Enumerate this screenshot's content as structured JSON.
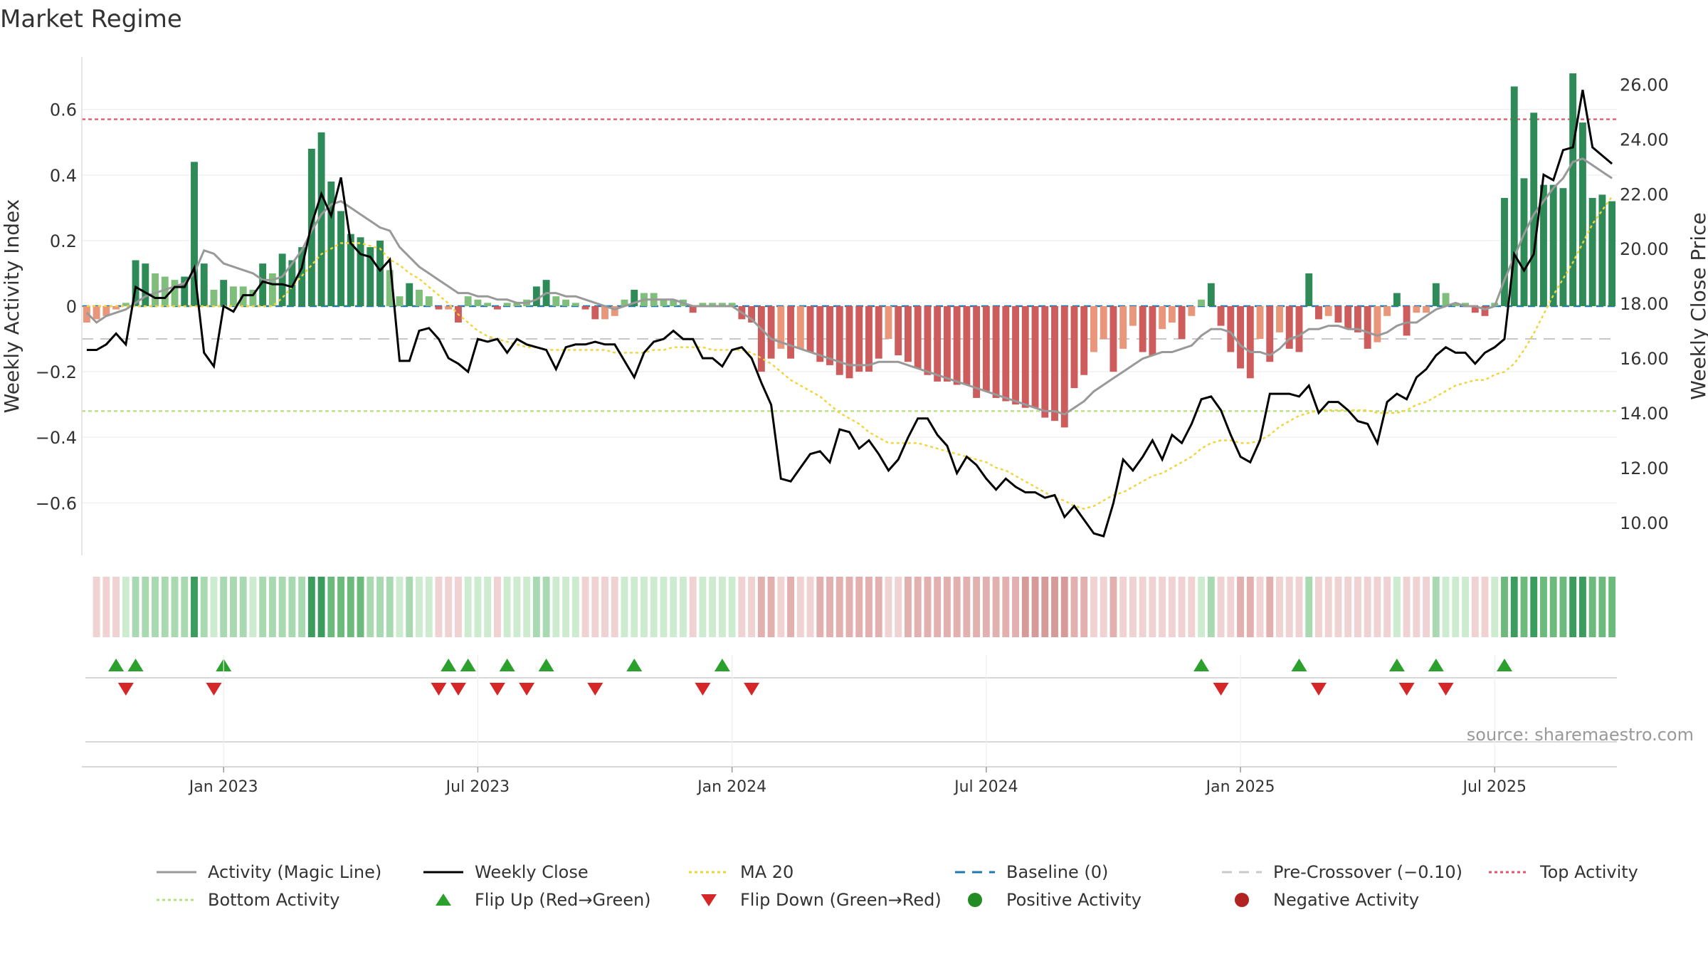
{
  "chart_data": {
    "type": "bar+line",
    "title": "Market Regime",
    "source": "source: sharemaestro.com",
    "left_axis": {
      "label": "Weekly Activity Index",
      "range": [
        -0.76,
        0.76
      ],
      "ticks": [
        -0.6,
        -0.4,
        -0.2,
        0,
        0.2,
        0.4,
        0.6
      ],
      "tick_labels": [
        "−0.6",
        "−0.4",
        "−0.2",
        "0",
        "0.2",
        "0.4",
        "0.6"
      ]
    },
    "right_axis": {
      "label": "Weekly Close Price",
      "range": [
        8.8,
        27.0
      ],
      "ticks": [
        10,
        12,
        14,
        16,
        18,
        20,
        22,
        24,
        26
      ],
      "tick_labels": [
        "10.00",
        "12.00",
        "14.00",
        "16.00",
        "18.00",
        "20.00",
        "22.00",
        "24.00",
        "26.00"
      ]
    },
    "x_axis": {
      "tick_labels": [
        "Jan 2023",
        "Jul 2023",
        "Jan 2024",
        "Jul 2024",
        "Jan 2025",
        "Jul 2025"
      ],
      "tick_weeks": [
        14,
        40,
        66,
        92,
        118,
        144
      ]
    },
    "reference_lines": {
      "top_activity": 0.57,
      "bottom_activity": -0.32,
      "pre_crossover": -0.1,
      "baseline": 0
    },
    "colors": {
      "pos_strong": "#2e8b57",
      "pos_weak": "#7fbf7b",
      "neg_strong": "#cd5c5c",
      "neg_weak": "#e9967a",
      "magic_line": "#999999",
      "close": "#000000",
      "ma20": "#f2d43a",
      "baseline": "#1f77b4",
      "top": "#e0556a",
      "bottom": "#b5de7e",
      "flip_up": "#2ca02c",
      "flip_down": "#d62728"
    },
    "series": {
      "activity": [
        -0.05,
        -0.04,
        -0.03,
        -0.01,
        0.01,
        0.14,
        0.13,
        0.1,
        0.09,
        0.08,
        0.09,
        0.44,
        0.13,
        0.05,
        0.08,
        0.06,
        0.06,
        0.05,
        0.13,
        0.1,
        0.16,
        0.14,
        0.18,
        0.48,
        0.53,
        0.38,
        0.29,
        0.22,
        0.21,
        0.18,
        0.2,
        0.11,
        0.03,
        0.07,
        0.05,
        0.03,
        -0.01,
        -0.01,
        -0.05,
        0.03,
        0.02,
        0.01,
        -0.01,
        0.01,
        0.01,
        0.02,
        0.06,
        0.08,
        0.03,
        0.02,
        0.01,
        -0.01,
        -0.04,
        -0.04,
        -0.03,
        0.02,
        0.05,
        0.04,
        0.04,
        0.02,
        0.02,
        0.02,
        -0.02,
        0.01,
        0.01,
        0.01,
        0.01,
        -0.04,
        -0.05,
        -0.2,
        -0.16,
        -0.13,
        -0.16,
        -0.13,
        -0.14,
        -0.17,
        -0.18,
        -0.21,
        -0.22,
        -0.2,
        -0.2,
        -0.16,
        -0.1,
        -0.15,
        -0.17,
        -0.19,
        -0.21,
        -0.23,
        -0.23,
        -0.24,
        -0.24,
        -0.28,
        -0.26,
        -0.28,
        -0.29,
        -0.3,
        -0.31,
        -0.31,
        -0.34,
        -0.35,
        -0.37,
        -0.25,
        -0.21,
        -0.14,
        -0.1,
        -0.2,
        -0.13,
        -0.06,
        -0.14,
        -0.15,
        -0.07,
        -0.05,
        -0.1,
        -0.03,
        0.02,
        0.07,
        -0.06,
        -0.14,
        -0.19,
        -0.22,
        -0.1,
        -0.17,
        -0.08,
        -0.13,
        -0.14,
        0.1,
        -0.04,
        -0.03,
        -0.05,
        -0.07,
        -0.08,
        -0.13,
        -0.11,
        -0.03,
        0.04,
        -0.09,
        -0.02,
        -0.02,
        0.07,
        0.04,
        0.01,
        0.01,
        -0.02,
        -0.03,
        0.01,
        0.33,
        0.67,
        0.39,
        0.59,
        0.37,
        0.37,
        0.36,
        0.71,
        0.56,
        0.33,
        0.34,
        0.32
      ],
      "magic_line": [
        -0.02,
        -0.05,
        -0.03,
        -0.02,
        -0.01,
        0.01,
        0.03,
        0.04,
        0.05,
        0.06,
        0.07,
        0.1,
        0.17,
        0.16,
        0.13,
        0.12,
        0.11,
        0.1,
        0.08,
        0.08,
        0.09,
        0.13,
        0.17,
        0.23,
        0.28,
        0.31,
        0.32,
        0.3,
        0.28,
        0.26,
        0.24,
        0.23,
        0.18,
        0.15,
        0.12,
        0.1,
        0.08,
        0.06,
        0.04,
        0.04,
        0.03,
        0.03,
        0.02,
        0.02,
        0.01,
        0.01,
        0.02,
        0.04,
        0.04,
        0.03,
        0.03,
        0.02,
        0.01,
        0,
        -0.01,
        0,
        0.01,
        0.02,
        0.02,
        0.02,
        0.02,
        0.01,
        0,
        0,
        0,
        0,
        0,
        -0.02,
        -0.04,
        -0.07,
        -0.1,
        -0.11,
        -0.12,
        -0.13,
        -0.14,
        -0.15,
        -0.16,
        -0.17,
        -0.18,
        -0.18,
        -0.18,
        -0.17,
        -0.17,
        -0.17,
        -0.18,
        -0.19,
        -0.2,
        -0.21,
        -0.22,
        -0.23,
        -0.24,
        -0.25,
        -0.26,
        -0.27,
        -0.28,
        -0.29,
        -0.3,
        -0.31,
        -0.32,
        -0.32,
        -0.33,
        -0.31,
        -0.29,
        -0.26,
        -0.24,
        -0.22,
        -0.2,
        -0.18,
        -0.16,
        -0.15,
        -0.14,
        -0.14,
        -0.13,
        -0.12,
        -0.09,
        -0.07,
        -0.07,
        -0.08,
        -0.12,
        -0.14,
        -0.14,
        -0.15,
        -0.13,
        -0.1,
        -0.09,
        -0.07,
        -0.07,
        -0.06,
        -0.06,
        -0.07,
        -0.07,
        -0.08,
        -0.09,
        -0.08,
        -0.06,
        -0.05,
        -0.05,
        -0.03,
        -0.01,
        0,
        0.01,
        0,
        0,
        -0.01,
        0,
        0.08,
        0.15,
        0.22,
        0.28,
        0.32,
        0.36,
        0.39,
        0.44,
        0.45,
        0.43,
        0.41,
        0.39
      ],
      "close": [
        16.3,
        16.3,
        16.5,
        16.9,
        16.5,
        18.6,
        18.4,
        18.2,
        18.2,
        18.6,
        18.6,
        19.3,
        16.2,
        15.7,
        17.9,
        17.7,
        18.3,
        18.3,
        18.8,
        18.7,
        18.7,
        18.6,
        19.3,
        20.9,
        22.0,
        21.2,
        22.6,
        20.2,
        19.8,
        19.7,
        19.2,
        19.6,
        15.9,
        15.9,
        17.0,
        17.1,
        16.7,
        16.0,
        15.8,
        15.5,
        16.7,
        16.6,
        16.7,
        16.2,
        16.7,
        16.5,
        16.4,
        16.3,
        15.6,
        16.4,
        16.5,
        16.5,
        16.6,
        16.5,
        16.5,
        15.9,
        15.3,
        16.2,
        16.6,
        16.7,
        17.0,
        16.7,
        16.7,
        16.0,
        16.0,
        15.7,
        16.3,
        16.4,
        16.0,
        15.1,
        14.3,
        11.6,
        11.5,
        12.0,
        12.5,
        12.6,
        12.2,
        13.4,
        13.3,
        12.7,
        13.0,
        12.5,
        11.9,
        12.3,
        13.1,
        13.8,
        13.8,
        13.2,
        12.8,
        11.8,
        12.4,
        12.1,
        11.6,
        11.2,
        11.6,
        11.3,
        11.1,
        11.1,
        10.9,
        11.0,
        10.2,
        10.6,
        10.1,
        9.6,
        9.5,
        10.7,
        12.3,
        11.9,
        12.4,
        13.0,
        12.3,
        13.2,
        12.9,
        13.6,
        14.5,
        14.6,
        14.1,
        13.2,
        12.4,
        12.2,
        13.0,
        14.7,
        14.7,
        14.7,
        14.6,
        15.0,
        14.0,
        14.4,
        14.4,
        14.1,
        13.7,
        13.6,
        12.9,
        14.4,
        14.7,
        14.5,
        15.3,
        15.6,
        16.1,
        16.4,
        16.2,
        16.2,
        15.8,
        16.2,
        16.4,
        16.7,
        19.8,
        19.2,
        19.8,
        22.7,
        22.5,
        23.6,
        23.7,
        25.8,
        23.7,
        23.4,
        23.1
      ],
      "ma20": [
        17.9,
        17.9,
        17.9,
        17.9,
        17.9,
        17.9,
        17.9,
        17.9,
        17.9,
        17.9,
        17.9,
        17.9,
        17.9,
        17.9,
        17.9,
        17.9,
        17.9,
        17.9,
        17.9,
        17.9,
        18.2,
        18.6,
        19.0,
        19.4,
        19.8,
        20.0,
        20.2,
        20.2,
        20.2,
        20.1,
        20.0,
        19.6,
        19.4,
        19.1,
        18.9,
        18.6,
        18.3,
        18.0,
        17.6,
        17.3,
        17.0,
        16.8,
        16.7,
        16.6,
        16.5,
        16.4,
        16.4,
        16.3,
        16.3,
        16.3,
        16.3,
        16.3,
        16.3,
        16.3,
        16.2,
        16.2,
        16.2,
        16.2,
        16.3,
        16.3,
        16.4,
        16.4,
        16.4,
        16.4,
        16.3,
        16.3,
        16.3,
        16.3,
        16.2,
        16.0,
        15.8,
        15.5,
        15.2,
        15.0,
        14.8,
        14.6,
        14.3,
        14.0,
        13.8,
        13.6,
        13.3,
        13.1,
        12.9,
        12.9,
        12.9,
        12.9,
        12.8,
        12.7,
        12.6,
        12.5,
        12.4,
        12.3,
        12.2,
        12.0,
        11.9,
        11.7,
        11.5,
        11.3,
        11.1,
        10.9,
        10.8,
        10.6,
        10.5,
        10.6,
        10.8,
        11.0,
        11.1,
        11.3,
        11.5,
        11.7,
        11.8,
        12.0,
        12.2,
        12.4,
        12.7,
        12.9,
        13.0,
        13.0,
        12.9,
        12.9,
        13.0,
        13.2,
        13.5,
        13.7,
        13.9,
        14.0,
        14.1,
        14.1,
        14.1,
        14.1,
        14.1,
        14.1,
        14.0,
        14.0,
        14.0,
        14.1,
        14.3,
        14.4,
        14.6,
        14.8,
        15.0,
        15.1,
        15.2,
        15.2,
        15.4,
        15.5,
        15.8,
        16.3,
        16.9,
        17.6,
        18.3,
        18.9,
        19.5,
        20.2,
        20.9,
        21.4,
        21.9
      ],
      "flip_up_weeks": [
        3,
        5,
        14,
        37,
        39,
        43,
        47,
        56,
        65,
        114,
        124,
        134,
        138,
        145
      ],
      "flip_down_weeks": [
        4,
        13,
        36,
        38,
        42,
        45,
        52,
        63,
        68,
        116,
        126,
        135,
        139
      ]
    },
    "legend": [
      {
        "label": "Activity (Magic Line)",
        "kind": "line",
        "color": "#999999"
      },
      {
        "label": "Weekly Close",
        "kind": "line",
        "color": "#000000"
      },
      {
        "label": "MA 20",
        "kind": "dotted",
        "color": "#f2d43a"
      },
      {
        "label": "Baseline (0)",
        "kind": "dashed",
        "color": "#1f77b4"
      },
      {
        "label": "Pre-Crossover (−0.10)",
        "kind": "dashed",
        "color": "#c8c8c8"
      },
      {
        "label": "Top Activity",
        "kind": "dotted",
        "color": "#e0556a"
      },
      {
        "label": "Bottom Activity",
        "kind": "dotted",
        "color": "#b5de7e"
      },
      {
        "label": "Flip Up (Red→Green)",
        "kind": "tri-up",
        "color": "#2ca02c"
      },
      {
        "label": "Flip Down (Green→Red)",
        "kind": "tri-down",
        "color": "#d62728"
      },
      {
        "label": "Positive Activity",
        "kind": "dot",
        "color": "#228b22"
      },
      {
        "label": "Negative Activity",
        "kind": "dot",
        "color": "#b22222"
      }
    ]
  }
}
